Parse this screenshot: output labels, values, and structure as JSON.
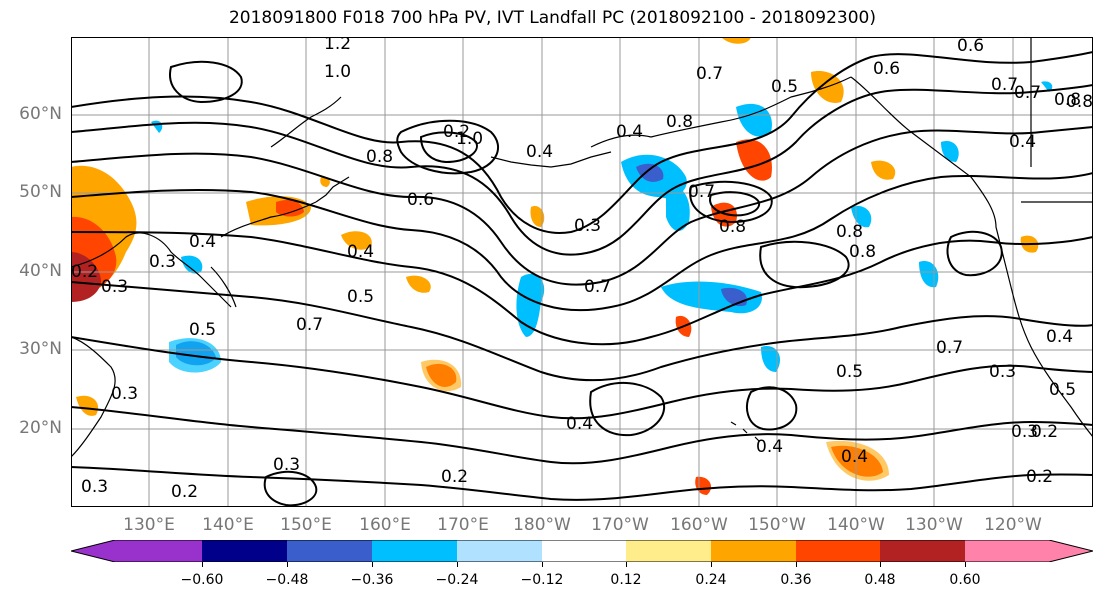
{
  "title": "2018091800 F018 700 hPa PV, IVT Landfall PC (2018092100 - 2018092300)",
  "map": {
    "projection": "cylindrical",
    "lon_range": [
      "120°E",
      "115°W"
    ],
    "lat_range": [
      "10°N",
      "70°N"
    ],
    "grid": true,
    "lat_labels": [
      "60°N",
      "50°N",
      "40°N",
      "30°N",
      "20°N"
    ],
    "lon_labels": [
      "130°E",
      "140°E",
      "150°E",
      "160°E",
      "170°E",
      "180°W",
      "170°W",
      "160°W",
      "150°W",
      "140°W",
      "130°W",
      "120°W"
    ],
    "contour_color": "#000000",
    "contour_labels": [
      "1.2",
      "1.0",
      "0.6",
      "0.7",
      "0.8",
      "0.7",
      "0.5",
      "0.6",
      "0.7",
      "0.8",
      "0.4",
      "1.0",
      "0.2",
      "0.4",
      "0.8",
      "0.6",
      "0.4",
      "0.3",
      "0.7",
      "0.8",
      "0.7",
      "0.8",
      "0.4",
      "0.3",
      "0.2",
      "0.5",
      "0.4",
      "0.5",
      "0.3",
      "0.7",
      "0.7",
      "0.3",
      "0.4",
      "0.5",
      "0.3",
      "0.4",
      "0.4",
      "0.5",
      "0.3",
      "0.2",
      "0.2",
      "0.3",
      "0.2",
      "0.4",
      "0.2",
      "0.3",
      "0.8",
      "0.8"
    ]
  },
  "colorbar": {
    "colors": [
      "#9932cc",
      "#00008b",
      "#3a5fcd",
      "#00bfff",
      "#b0e2ff",
      "#ffffff",
      "#ffec8b",
      "#ffa500",
      "#ff4500",
      "#b22222",
      "#ff82ab"
    ],
    "ticks": [
      "−0.60",
      "−0.48",
      "−0.36",
      "−0.24",
      "−0.12",
      "0.12",
      "0.24",
      "0.36",
      "0.48",
      "0.60"
    ],
    "extend": "both"
  }
}
